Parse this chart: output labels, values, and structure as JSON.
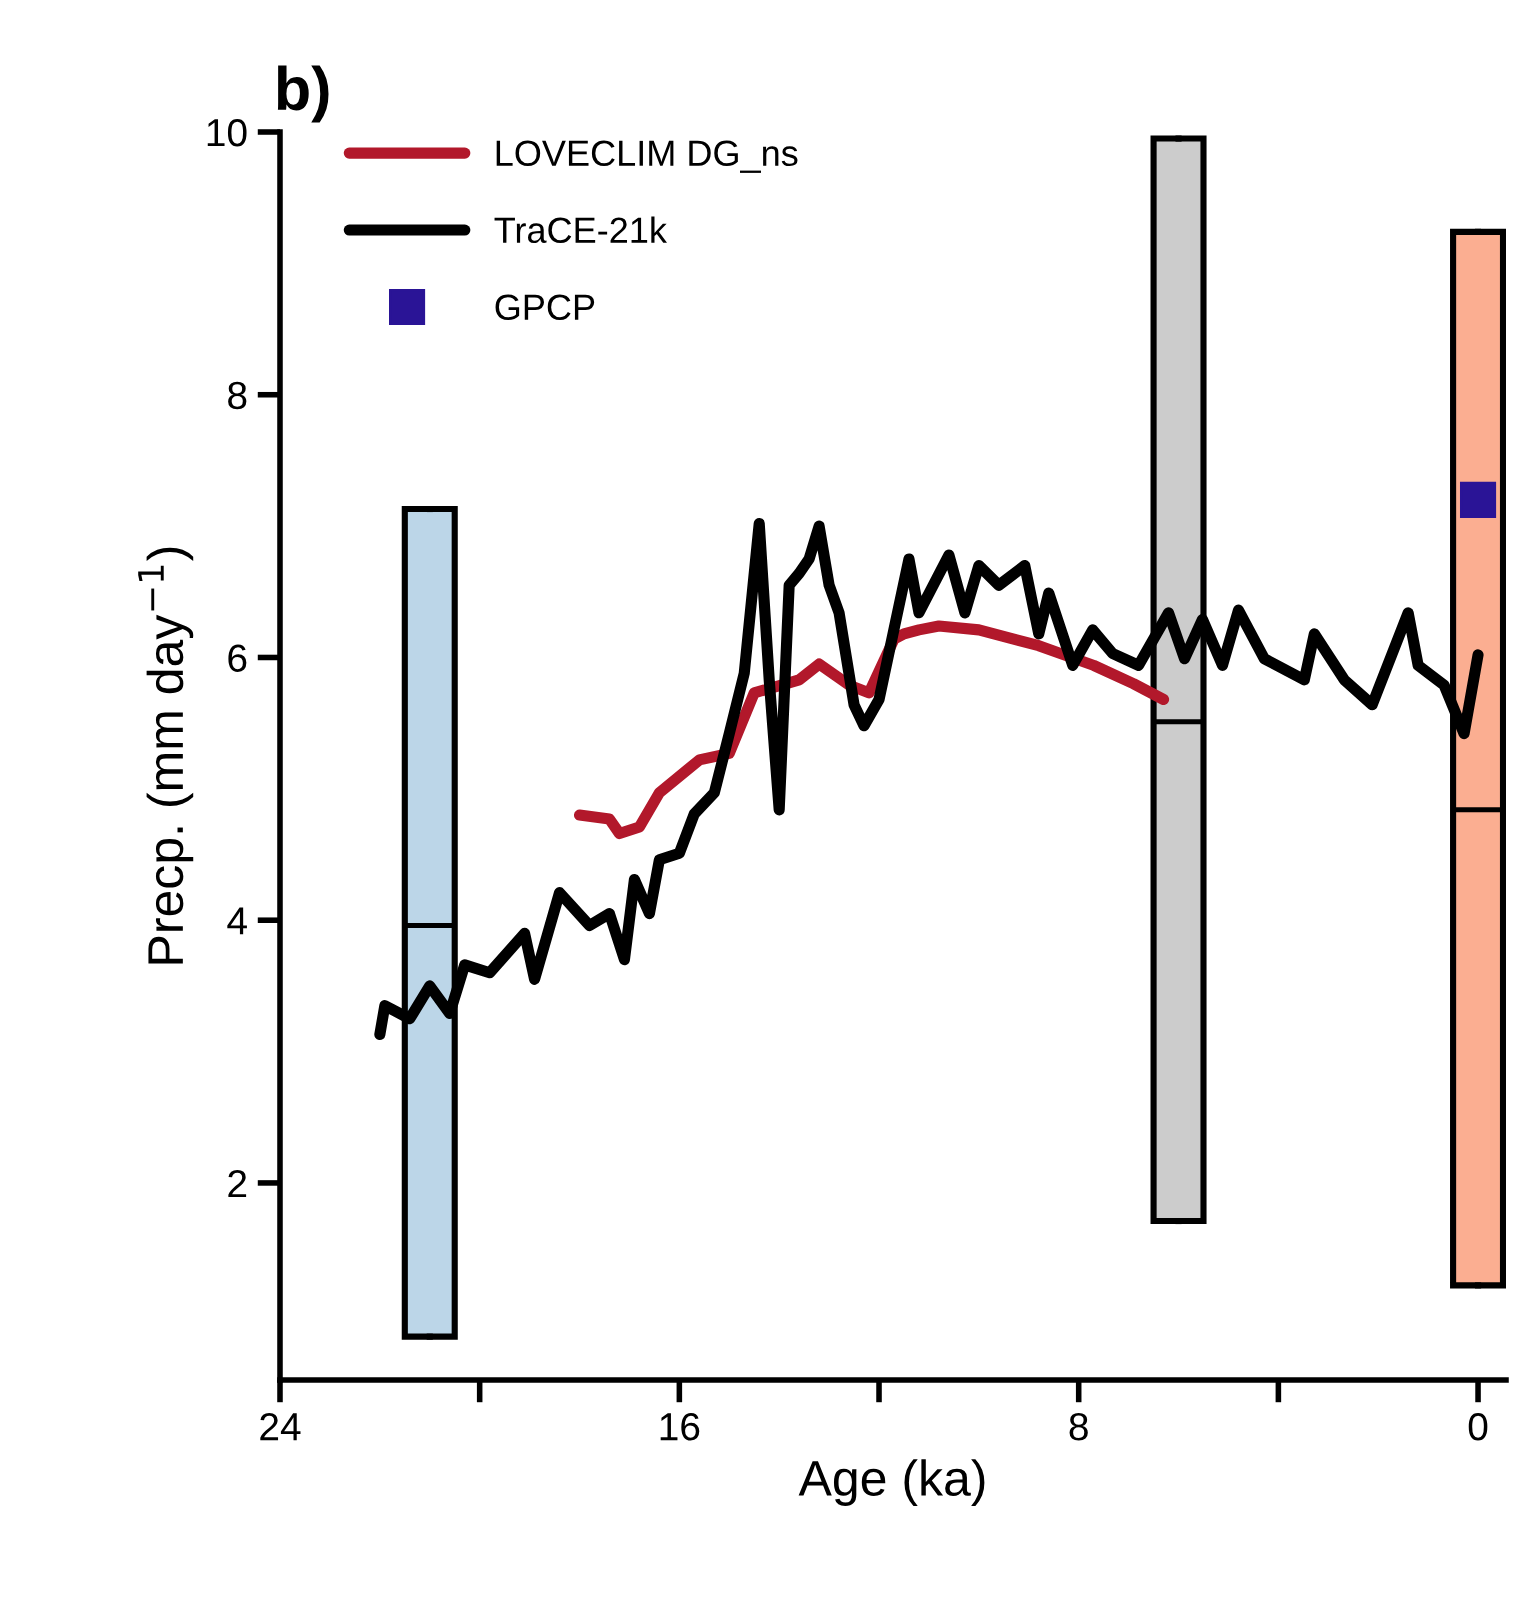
{
  "chart_data": {
    "type": "line",
    "title": "b)",
    "xlabel": "Age (ka)",
    "ylabel": "Precp. (mm day$^{−1}$)",
    "xlim": [
      24,
      -0.56
    ],
    "xticks": [
      24,
      {
        "value": 20,
        "label": null
      },
      16,
      {
        "value": 12,
        "label": null
      },
      8,
      {
        "value": 4,
        "label": null
      },
      0
    ],
    "ylim": [
      0.5,
      10
    ],
    "yticks": [
      2,
      4,
      6,
      8,
      10
    ],
    "grid": false,
    "legend": "top left",
    "series": [
      {
        "type": "box",
        "color": null,
        "colors": [
          "#bcd6e8",
          "#cccccc",
          "#fbae91"
        ],
        "x": [
          21,
          6,
          0
        ],
        "boxes": [
          {
            "low": 0.83,
            "q1": 0.83,
            "median": 3.96,
            "q3": 7.13,
            "high": 7.13
          },
          {
            "low": 1.71,
            "q1": 1.71,
            "median": 5.51,
            "q3": 9.95,
            "high": 9.95
          },
          {
            "low": 1.22,
            "q1": 1.22,
            "median": 4.84,
            "q3": 9.24,
            "high": 9.24
          }
        ]
      },
      {
        "name": "LOVECLIM DG_ns",
        "color": "#b2182b",
        "x": [
          18.0,
          17.4,
          17.2,
          16.8,
          16.4,
          15.6,
          15.0,
          14.5,
          13.6,
          13.2,
          12.6,
          12.2,
          11.7,
          11.5,
          11.2,
          10.8,
          10.0,
          8.8,
          7.7,
          6.9,
          6.3
        ],
        "values": [
          4.8,
          4.77,
          4.66,
          4.71,
          4.97,
          5.22,
          5.27,
          5.73,
          5.83,
          5.95,
          5.79,
          5.73,
          6.14,
          6.18,
          6.21,
          6.24,
          6.21,
          6.09,
          5.94,
          5.8,
          5.68
        ]
      },
      {
        "name": "TraCE-21k",
        "color": "#000000",
        "x": [
          22.0,
          21.9,
          21.4,
          21.0,
          20.6,
          20.3,
          19.8,
          19.1,
          18.9,
          18.4,
          17.8,
          17.4,
          17.1,
          16.9,
          16.6,
          16.4,
          16.0,
          15.7,
          15.3,
          15.0,
          14.7,
          14.4,
          14.2,
          14.0,
          13.8,
          13.6,
          13.4,
          13.2,
          13.0,
          12.8,
          12.5,
          12.3,
          12.0,
          11.72,
          11.4,
          11.2,
          10.6,
          10.28,
          10.0,
          9.6,
          9.08,
          8.8,
          8.6,
          8.12,
          7.72,
          7.32,
          6.8,
          6.2,
          5.88,
          5.52,
          5.12,
          4.8,
          4.28,
          3.48,
          3.28,
          2.68,
          2.12,
          1.4,
          1.2,
          0.68,
          0.28,
          0.0
        ],
        "values": [
          3.13,
          3.35,
          3.25,
          3.5,
          3.29,
          3.66,
          3.6,
          3.9,
          3.55,
          4.21,
          3.96,
          4.05,
          3.7,
          4.31,
          4.05,
          4.46,
          4.51,
          4.81,
          4.97,
          5.42,
          5.88,
          7.02,
          5.83,
          4.84,
          6.55,
          6.64,
          6.75,
          7.0,
          6.55,
          6.34,
          5.64,
          5.48,
          5.68,
          6.18,
          6.75,
          6.34,
          6.78,
          6.34,
          6.7,
          6.55,
          6.7,
          6.18,
          6.49,
          5.94,
          6.21,
          6.03,
          5.94,
          6.34,
          5.99,
          6.29,
          5.94,
          6.36,
          5.99,
          5.83,
          6.18,
          5.83,
          5.64,
          6.34,
          5.94,
          5.79,
          5.42,
          6.02
        ]
      },
      {
        "type": "scatter",
        "name": "GPCP",
        "color": "#2a1496",
        "marker": "square",
        "x": [
          0
        ],
        "values": [
          7.2
        ]
      }
    ]
  }
}
